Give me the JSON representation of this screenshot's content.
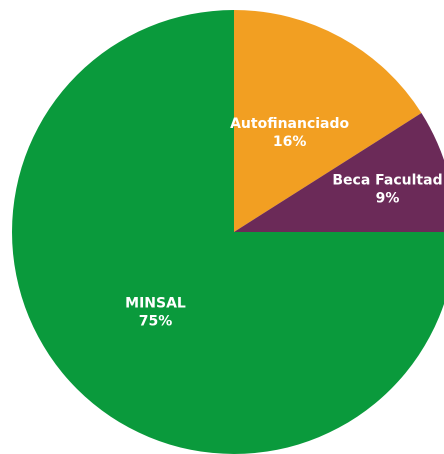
{
  "chart_data": {
    "type": "pie",
    "slices": [
      {
        "label": "MINSAL",
        "value": 75,
        "value_label": "75%",
        "color": "#0a9a3c"
      },
      {
        "label": "Autofinanciado",
        "value": 16,
        "value_label": "16%",
        "color": "#f29f22"
      },
      {
        "label": "Beca Facultad",
        "value": 9,
        "value_label": "9%",
        "color": "#6b2a58"
      }
    ],
    "start_angle_deg": 0,
    "direction": "clockwise from top: Autofinanciado, Beca Facultad, MINSAL"
  }
}
